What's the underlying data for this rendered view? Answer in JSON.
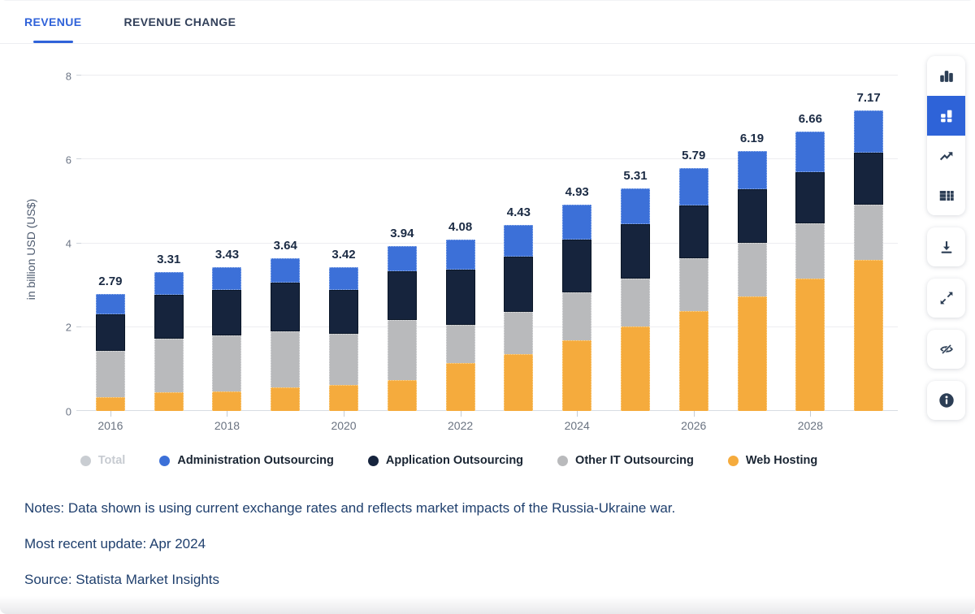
{
  "tabs": [
    {
      "label": "REVENUE",
      "active": true
    },
    {
      "label": "REVENUE CHANGE",
      "active": false
    }
  ],
  "colors": {
    "accent_blue": "#2f62d9",
    "active_tool_background": "#2e63d8",
    "value_label": "#1b2b44",
    "notes_text": "#20406e",
    "axis_text": "#6a7381"
  },
  "chart_data": {
    "type": "bar",
    "stacked": true,
    "title": "",
    "ylabel": "in billion USD (US$)",
    "xlabel": "",
    "ylim": [
      0,
      8
    ],
    "yticks": [
      0,
      2,
      4,
      6,
      8
    ],
    "grid": true,
    "x": [
      2016,
      2017,
      2018,
      2019,
      2020,
      2021,
      2022,
      2023,
      2024,
      2025,
      2026,
      2027,
      2028,
      2029
    ],
    "xticks": [
      {
        "index": 0,
        "label": "2016"
      },
      {
        "index": 2,
        "label": "2018"
      },
      {
        "index": 4,
        "label": "2020"
      },
      {
        "index": 6,
        "label": "2022"
      },
      {
        "index": 8,
        "label": "2024"
      },
      {
        "index": 10,
        "label": "2026"
      },
      {
        "index": 12,
        "label": "2028"
      }
    ],
    "series": [
      {
        "name": "Web Hosting",
        "color": "#f5ab3d",
        "css": "seg-wh",
        "values": [
          0.32,
          0.44,
          0.47,
          0.57,
          0.62,
          0.74,
          1.14,
          1.36,
          1.68,
          2.01,
          2.38,
          2.74,
          3.16,
          3.6
        ]
      },
      {
        "name": "Other IT Outsourcing",
        "color": "#b9babc",
        "css": "seg-other",
        "values": [
          1.12,
          1.29,
          1.33,
          1.33,
          1.22,
          1.43,
          0.91,
          1.0,
          1.15,
          1.15,
          1.26,
          1.27,
          1.31,
          1.32
        ]
      },
      {
        "name": "Application Outsourcing",
        "color": "#16243d",
        "css": "seg-app",
        "values": [
          0.87,
          1.05,
          1.09,
          1.16,
          1.04,
          1.16,
          1.32,
          1.32,
          1.25,
          1.29,
          1.27,
          1.27,
          1.23,
          1.24
        ]
      },
      {
        "name": "Administration Outsourcing",
        "color": "#3c70d8",
        "css": "seg-admin",
        "values": [
          0.48,
          0.53,
          0.54,
          0.58,
          0.54,
          0.61,
          0.71,
          0.75,
          0.85,
          0.86,
          0.88,
          0.91,
          0.96,
          1.01
        ]
      }
    ],
    "totals": [
      2.79,
      3.31,
      3.43,
      3.64,
      3.42,
      3.94,
      4.08,
      4.43,
      4.93,
      5.31,
      5.79,
      6.19,
      6.66,
      7.17
    ],
    "legend_position": "bottom"
  },
  "legend": [
    {
      "label": "Total",
      "color": "#c9cdd2",
      "disabled": true
    },
    {
      "label": "Administration Outsourcing",
      "color": "#3c70d8",
      "disabled": false
    },
    {
      "label": "Application Outsourcing",
      "color": "#16243d",
      "disabled": false
    },
    {
      "label": "Other IT Outsourcing",
      "color": "#b9babc",
      "disabled": false
    },
    {
      "label": "Web Hosting",
      "color": "#f5ab3d",
      "disabled": false
    }
  ],
  "toolbar": {
    "chart_type_icons": [
      {
        "icon": "column-chart-icon",
        "active": false
      },
      {
        "icon": "stacked-bar-chart-icon",
        "active": true
      },
      {
        "icon": "line-chart-icon",
        "active": false
      },
      {
        "icon": "data-table-icon",
        "active": false
      }
    ],
    "action_icons": [
      {
        "icon": "download-icon"
      },
      {
        "icon": "fullscreen-icon"
      },
      {
        "icon": "hide-labels-icon"
      },
      {
        "icon": "info-icon"
      }
    ]
  },
  "notes": {
    "notes_line": "Notes: Data shown is using current exchange rates and reflects market impacts of the Russia-Ukraine war.",
    "update_line": "Most recent update: Apr 2024",
    "source_line": "Source: Statista Market Insights"
  }
}
